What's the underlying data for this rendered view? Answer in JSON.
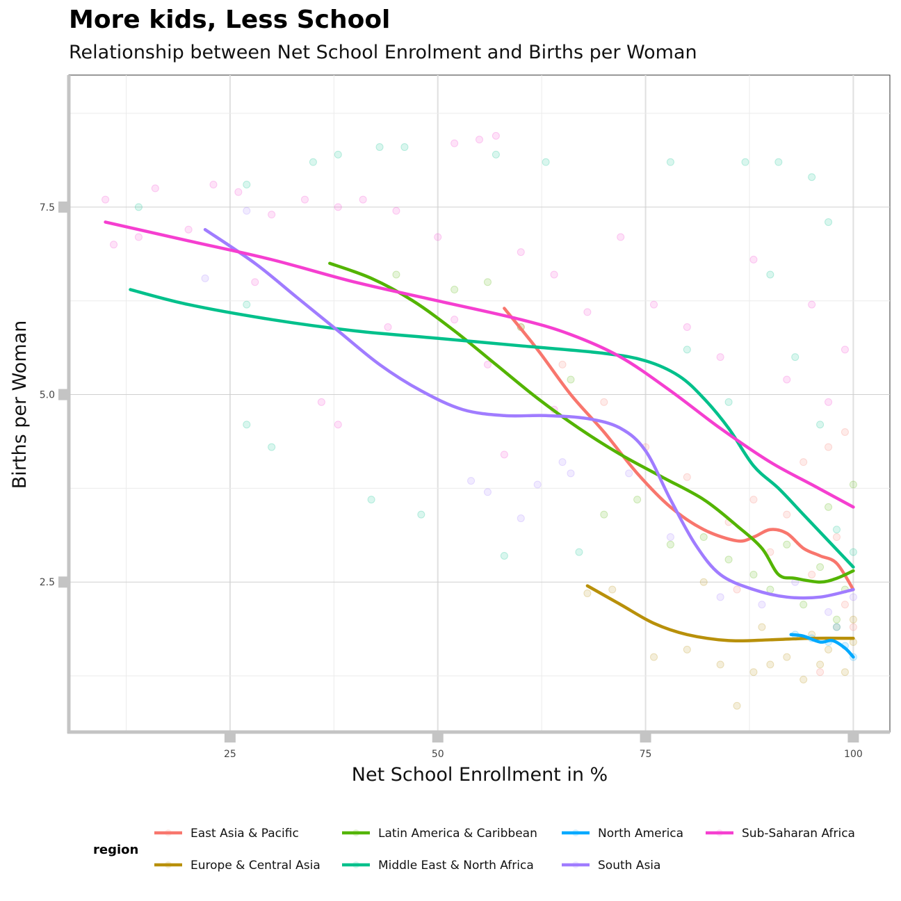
{
  "chart_data": {
    "type": "scatter",
    "title": "More kids, Less School",
    "subtitle": "Relationship between Net School Enrolment and Births per Woman",
    "xlabel": "Net School Enrollment in %",
    "ylabel": "Births per Woman",
    "xlim": [
      5.6,
      104.4
    ],
    "ylim": [
      0.5,
      9.26
    ],
    "xticks": [
      25,
      50,
      75,
      100
    ],
    "xtick_labels": [
      "25",
      "50",
      "75",
      "100"
    ],
    "yticks": [
      2.5,
      5.0,
      7.5
    ],
    "ytick_labels": [
      "2.5",
      "5.0",
      "7.5"
    ],
    "grid": true,
    "legend": {
      "title": "region",
      "placement": "bottom"
    },
    "series": [
      {
        "name": "East Asia & Pacific",
        "color": "#F8766D",
        "smooth": [
          [
            58,
            6.15
          ],
          [
            62,
            5.6
          ],
          [
            66,
            5.0
          ],
          [
            70,
            4.5
          ],
          [
            74,
            3.95
          ],
          [
            78,
            3.5
          ],
          [
            82,
            3.2
          ],
          [
            86,
            3.05
          ],
          [
            88,
            3.1
          ],
          [
            90,
            3.2
          ],
          [
            92,
            3.15
          ],
          [
            94,
            2.95
          ],
          [
            96,
            2.85
          ],
          [
            98,
            2.75
          ],
          [
            100,
            2.4
          ]
        ],
        "points": [
          [
            60,
            5.9
          ],
          [
            65,
            5.4
          ],
          [
            70,
            4.9
          ],
          [
            75,
            4.3
          ],
          [
            80,
            3.9
          ],
          [
            85,
            3.3
          ],
          [
            88,
            3.6
          ],
          [
            90,
            2.9
          ],
          [
            92,
            3.4
          ],
          [
            95,
            2.6
          ],
          [
            97,
            4.3
          ],
          [
            98,
            3.1
          ],
          [
            99,
            2.2
          ],
          [
            100,
            1.9
          ],
          [
            96,
            1.3
          ],
          [
            94,
            4.1
          ],
          [
            99,
            4.5
          ],
          [
            86,
            2.4
          ]
        ]
      },
      {
        "name": "Europe & Central Asia",
        "color": "#B8900A",
        "smooth": [
          [
            68,
            2.45
          ],
          [
            72,
            2.2
          ],
          [
            76,
            1.95
          ],
          [
            80,
            1.8
          ],
          [
            85,
            1.72
          ],
          [
            90,
            1.73
          ],
          [
            95,
            1.75
          ],
          [
            100,
            1.75
          ]
        ],
        "points": [
          [
            68,
            2.35
          ],
          [
            71,
            2.4
          ],
          [
            76,
            1.5
          ],
          [
            80,
            1.6
          ],
          [
            84,
            1.4
          ],
          [
            86,
            0.85
          ],
          [
            88,
            1.3
          ],
          [
            90,
            1.4
          ],
          [
            92,
            1.5
          ],
          [
            94,
            1.2
          ],
          [
            95,
            1.8
          ],
          [
            96,
            1.4
          ],
          [
            97,
            1.6
          ],
          [
            98,
            1.9
          ],
          [
            99,
            1.3
          ],
          [
            100,
            1.7
          ],
          [
            100,
            2.0
          ],
          [
            89,
            1.9
          ],
          [
            82,
            2.5
          ]
        ]
      },
      {
        "name": "Latin America & Caribbean",
        "color": "#53B400",
        "smooth": [
          [
            37,
            6.75
          ],
          [
            42,
            6.55
          ],
          [
            47,
            6.25
          ],
          [
            52,
            5.85
          ],
          [
            57,
            5.4
          ],
          [
            62,
            4.95
          ],
          [
            67,
            4.55
          ],
          [
            72,
            4.2
          ],
          [
            77,
            3.9
          ],
          [
            82,
            3.6
          ],
          [
            86,
            3.25
          ],
          [
            89,
            2.95
          ],
          [
            91,
            2.6
          ],
          [
            93,
            2.55
          ],
          [
            96,
            2.5
          ],
          [
            98,
            2.55
          ],
          [
            100,
            2.65
          ]
        ],
        "points": [
          [
            45,
            6.6
          ],
          [
            52,
            6.4
          ],
          [
            56,
            6.5
          ],
          [
            60,
            5.9
          ],
          [
            66,
            5.2
          ],
          [
            70,
            3.4
          ],
          [
            74,
            3.6
          ],
          [
            78,
            3.0
          ],
          [
            82,
            3.1
          ],
          [
            85,
            2.8
          ],
          [
            88,
            2.6
          ],
          [
            90,
            2.4
          ],
          [
            92,
            3.0
          ],
          [
            94,
            2.2
          ],
          [
            96,
            2.7
          ],
          [
            97,
            3.5
          ],
          [
            98,
            2.0
          ],
          [
            100,
            3.8
          ],
          [
            99,
            2.4
          ]
        ]
      },
      {
        "name": "Middle East & North Africa",
        "color": "#00C08B",
        "smooth": [
          [
            13,
            6.4
          ],
          [
            20,
            6.2
          ],
          [
            30,
            6.0
          ],
          [
            40,
            5.85
          ],
          [
            50,
            5.75
          ],
          [
            60,
            5.65
          ],
          [
            70,
            5.55
          ],
          [
            75,
            5.45
          ],
          [
            79,
            5.25
          ],
          [
            82,
            4.95
          ],
          [
            85,
            4.55
          ],
          [
            88,
            4.05
          ],
          [
            91,
            3.75
          ],
          [
            94,
            3.4
          ],
          [
            97,
            3.05
          ],
          [
            100,
            2.7
          ]
        ],
        "points": [
          [
            14,
            7.5
          ],
          [
            27,
            7.8
          ],
          [
            27,
            6.2
          ],
          [
            27,
            4.6
          ],
          [
            30,
            4.3
          ],
          [
            35,
            8.1
          ],
          [
            38,
            8.2
          ],
          [
            43,
            8.3
          ],
          [
            46,
            8.3
          ],
          [
            57,
            8.2
          ],
          [
            63,
            8.1
          ],
          [
            42,
            3.6
          ],
          [
            48,
            3.4
          ],
          [
            58,
            2.85
          ],
          [
            67,
            2.9
          ],
          [
            78,
            8.1
          ],
          [
            87,
            8.1
          ],
          [
            91,
            8.1
          ],
          [
            95,
            7.9
          ],
          [
            97,
            7.3
          ],
          [
            90,
            6.6
          ],
          [
            93,
            5.5
          ],
          [
            96,
            4.6
          ],
          [
            98,
            3.2
          ],
          [
            100,
            2.9
          ],
          [
            85,
            4.9
          ],
          [
            80,
            5.6
          ]
        ]
      },
      {
        "name": "North America",
        "color": "#00A9FF",
        "smooth": [
          [
            92.5,
            1.8
          ],
          [
            94,
            1.78
          ],
          [
            96,
            1.7
          ],
          [
            97.5,
            1.72
          ],
          [
            99,
            1.62
          ],
          [
            100,
            1.5
          ]
        ],
        "points": [
          [
            93,
            1.8
          ],
          [
            95,
            1.75
          ],
          [
            97,
            1.7
          ],
          [
            99,
            1.65
          ],
          [
            100,
            1.5
          ],
          [
            98,
            1.9
          ]
        ]
      },
      {
        "name": "South Asia",
        "color": "#A07CFF",
        "smooth": [
          [
            22,
            7.2
          ],
          [
            28,
            6.75
          ],
          [
            33,
            6.3
          ],
          [
            38,
            5.85
          ],
          [
            43,
            5.4
          ],
          [
            48,
            5.05
          ],
          [
            53,
            4.8
          ],
          [
            58,
            4.72
          ],
          [
            63,
            4.72
          ],
          [
            68,
            4.68
          ],
          [
            72,
            4.55
          ],
          [
            75,
            4.25
          ],
          [
            78,
            3.6
          ],
          [
            81,
            3.0
          ],
          [
            84,
            2.6
          ],
          [
            88,
            2.4
          ],
          [
            92,
            2.3
          ],
          [
            96,
            2.3
          ],
          [
            100,
            2.4
          ]
        ],
        "points": [
          [
            22,
            6.55
          ],
          [
            27,
            7.45
          ],
          [
            54,
            3.85
          ],
          [
            56,
            3.7
          ],
          [
            60,
            3.35
          ],
          [
            62,
            3.8
          ],
          [
            65,
            4.1
          ],
          [
            66,
            3.95
          ],
          [
            73,
            3.95
          ],
          [
            78,
            3.1
          ],
          [
            84,
            2.3
          ],
          [
            89,
            2.2
          ],
          [
            93,
            2.5
          ],
          [
            97,
            2.1
          ],
          [
            100,
            2.3
          ]
        ]
      },
      {
        "name": "Sub-Saharan Africa",
        "color": "#F53FD0",
        "smooth": [
          [
            10,
            7.3
          ],
          [
            20,
            7.05
          ],
          [
            30,
            6.8
          ],
          [
            40,
            6.5
          ],
          [
            50,
            6.25
          ],
          [
            60,
            6.0
          ],
          [
            66,
            5.8
          ],
          [
            72,
            5.5
          ],
          [
            78,
            5.05
          ],
          [
            84,
            4.55
          ],
          [
            90,
            4.1
          ],
          [
            95,
            3.8
          ],
          [
            100,
            3.5
          ]
        ],
        "points": [
          [
            10,
            7.6
          ],
          [
            11,
            7.0
          ],
          [
            14,
            7.1
          ],
          [
            16,
            7.75
          ],
          [
            20,
            7.2
          ],
          [
            23,
            7.8
          ],
          [
            26,
            7.7
          ],
          [
            30,
            7.4
          ],
          [
            34,
            7.6
          ],
          [
            38,
            7.5
          ],
          [
            41,
            7.6
          ],
          [
            45,
            7.45
          ],
          [
            50,
            7.1
          ],
          [
            52,
            8.35
          ],
          [
            55,
            8.4
          ],
          [
            57,
            8.45
          ],
          [
            52,
            6.0
          ],
          [
            56,
            5.4
          ],
          [
            60,
            6.9
          ],
          [
            64,
            6.6
          ],
          [
            68,
            6.1
          ],
          [
            72,
            7.1
          ],
          [
            76,
            6.2
          ],
          [
            80,
            5.9
          ],
          [
            84,
            5.5
          ],
          [
            88,
            6.8
          ],
          [
            92,
            5.2
          ],
          [
            95,
            6.2
          ],
          [
            97,
            4.9
          ],
          [
            99,
            5.6
          ],
          [
            36,
            4.9
          ],
          [
            38,
            4.6
          ],
          [
            64,
            4.8
          ],
          [
            58,
            4.2
          ],
          [
            28,
            6.5
          ],
          [
            44,
            5.9
          ]
        ]
      }
    ]
  }
}
